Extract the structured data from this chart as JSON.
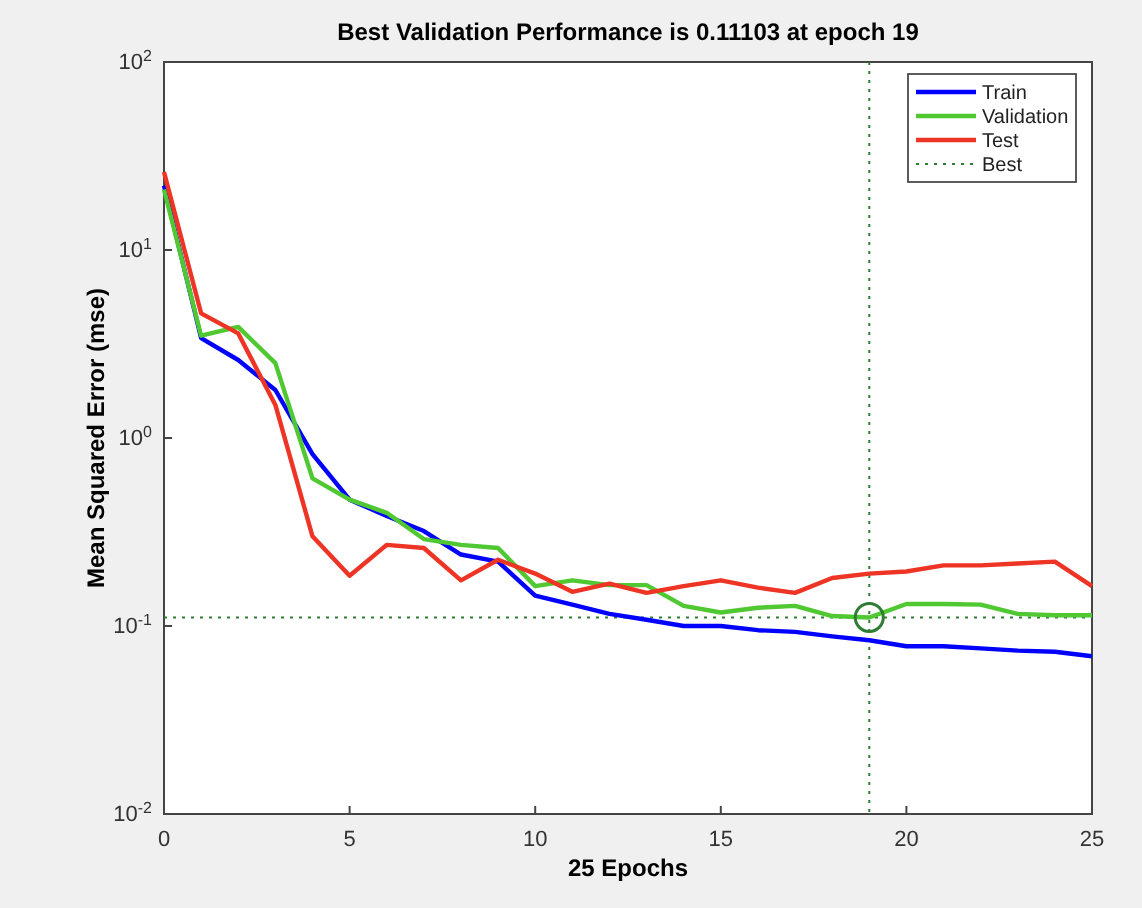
{
  "chart_data": {
    "type": "line",
    "title": "Best Validation Performance is 0.11103 at epoch 19",
    "xlabel": "25 Epochs",
    "ylabel": "Mean Squared Error  (mse)",
    "x": [
      0,
      1,
      2,
      3,
      4,
      5,
      6,
      7,
      8,
      9,
      10,
      11,
      12,
      13,
      14,
      15,
      16,
      17,
      18,
      19,
      20,
      21,
      22,
      23,
      24,
      25
    ],
    "series": [
      {
        "name": "Train",
        "color": "#0000ff",
        "values": [
          22,
          3.4,
          2.6,
          1.8,
          0.82,
          0.47,
          0.385,
          0.32,
          0.24,
          0.22,
          0.145,
          0.13,
          0.116,
          0.108,
          0.1,
          0.1,
          0.095,
          0.093,
          0.088,
          0.084,
          0.078,
          0.078,
          0.076,
          0.074,
          0.073,
          0.069
        ]
      },
      {
        "name": "Validation",
        "color": "#4fc832",
        "values": [
          21,
          3.5,
          3.9,
          2.5,
          0.61,
          0.47,
          0.4,
          0.29,
          0.27,
          0.26,
          0.163,
          0.175,
          0.165,
          0.165,
          0.128,
          0.118,
          0.125,
          0.128,
          0.113,
          0.11103,
          0.131,
          0.131,
          0.13,
          0.116,
          0.114,
          0.114
        ]
      },
      {
        "name": "Test",
        "color": "#ee3424",
        "values": [
          26,
          4.6,
          3.6,
          1.5,
          0.3,
          0.185,
          0.27,
          0.26,
          0.175,
          0.225,
          0.19,
          0.152,
          0.168,
          0.15,
          0.163,
          0.175,
          0.16,
          0.15,
          0.18,
          0.19,
          0.195,
          0.21,
          0.21,
          0.215,
          0.22,
          0.163
        ]
      },
      {
        "name": "Best",
        "color": "#2e7d32",
        "x": [
          19
        ],
        "values": [
          0.11103
        ],
        "marker": "circle",
        "line_style": "dotted"
      }
    ],
    "ref_lines": [
      {
        "axis": "x",
        "value": 19,
        "color": "#2e7d32",
        "line_style": "dotted"
      },
      {
        "axis": "y",
        "value": 0.11103,
        "color": "#2e7d32",
        "line_style": "dotted"
      }
    ],
    "xlim": [
      0,
      25
    ],
    "xticks": [
      0,
      5,
      10,
      15,
      20,
      25
    ],
    "ylim": [
      0.01,
      100
    ],
    "yticks": [
      {
        "value": 0.01,
        "label": "10$^{-2}$"
      },
      {
        "value": 0.1,
        "label": "10$^{-1}$"
      },
      {
        "value": 1,
        "label": "10$^{0}$"
      },
      {
        "value": 10,
        "label": "10$^{1}$"
      },
      {
        "value": 100,
        "label": "10$^{2}$"
      }
    ],
    "log": "y",
    "grid": false,
    "legend": "top right"
  }
}
